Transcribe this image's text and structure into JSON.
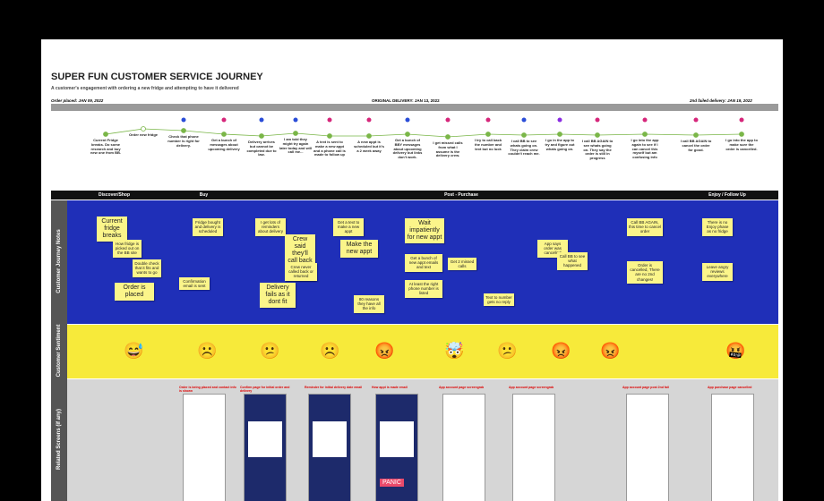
{
  "header": {
    "title": "SUPER FUN CUSTOMER SERVICE JOURNEY",
    "subtitle": "A customer's engagement with ordering a new fridge and attempting to have it delivered"
  },
  "timeline": {
    "start": "Order placed: JAN 09, 2022",
    "middle": "ORIGINAL DELIVERY: JAN 13, 2022",
    "end": "2nd failed delivery: JAN 19, 2022"
  },
  "events": [
    "Current Fridge breaks. Do some research and buy new one from BB.",
    "Order new fridge",
    "Check that phone number is right for delivery.",
    "Get a bunch of messages about upcoming delivery",
    "Delivery arrives but cannot be completed due to law.",
    "I am told they might try again later today and will call me...",
    "A text is sent to make a new appt and a phone call is made to follow up",
    "A new appt is scheduled but it's a 2 week away",
    "Get a bunch of BBY messages about upcoming delivery but links don't work.",
    "I get missed calls from what I assume is the delivery crew.",
    "I try to call back the number and text but no luck",
    "I call BB to see whats going on. They claim crew couldn't reach me.",
    "I go in the app to try and figure out whats going on.",
    "I call BB AGAIN to see whats going on. They say the order is still in progress",
    "I go into the app again to see if I can cancel this myself but am confusing info",
    "I call BB AGAIN to cancel the order for good.",
    "I go into the app to make sure the order is cancelled."
  ],
  "phases": [
    "Discover/Shop",
    "Buy",
    "Post - Purchase",
    "Enjoy / Follow Up"
  ],
  "rows": [
    "Customer Journey Notes",
    "Customer Sentiment",
    "Related Screens (if any)"
  ],
  "notes": [
    "Current fridge breaks",
    "How fridge is picked out on the BB site",
    "Double check that it fits and wants to go",
    "Order is placed",
    "Fridge bought and delivery is scheduled",
    "Confirmation email is sent",
    "I get lots of reminders about delivery",
    "Delivery fails as it dont fit",
    "Crew said they'll call back later and reschedule",
    "Crew never called back or returned",
    "Make the new appt",
    "Get a text to make a new appt",
    "80 reasons they have all the info",
    "Wait impatiently for new appt",
    "Get a bunch of new appt emails and text",
    "At least the right phone number is listed",
    "Get 2 missed calls",
    "Text to number gets no reply",
    "App says order was cancelled",
    "Call BB to see what happened",
    "Call BB AGAIN, this time to cancel order",
    "Order is cancelled, There are no 2nd changes!",
    "There is no Enjoy phase as no fridge",
    "Leave angry reviews everywhere"
  ],
  "sentiments": [
    "😅",
    "☹️",
    "😕",
    "☹️",
    "😡",
    "🤯",
    "😕",
    "😡",
    "😡",
    "🤬"
  ],
  "screens": [
    "Order is being placed and contact info is shown",
    "Confirm page for initial order and delivery",
    "Reminder for initial delivery date email",
    "How appt is made email",
    "App account page screengrab",
    "App account page screengrab",
    "App account page post 2nd fail",
    "App purchase page cancelled"
  ],
  "screen_text": "PANIC"
}
